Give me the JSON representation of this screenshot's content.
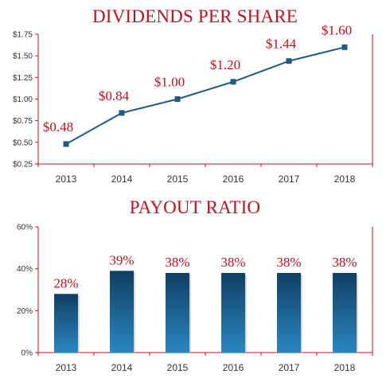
{
  "colors": {
    "accent": "#c0101f",
    "line": "#1d5a84",
    "bar_top": "#103f63",
    "bar_bottom": "#2a87c0"
  },
  "chart_data": [
    {
      "type": "line",
      "title": "DIVIDENDS PER SHARE",
      "categories": [
        "2013",
        "2014",
        "2015",
        "2016",
        "2017",
        "2018"
      ],
      "values": [
        0.48,
        0.84,
        1.0,
        1.2,
        1.44,
        1.6
      ],
      "data_labels": [
        "$0.48",
        "$0.84",
        "$1.00",
        "$1.20",
        "$1.44",
        "$1.60"
      ],
      "yticks": [
        "$0.25",
        "$0.50",
        "$0.75",
        "$1.00",
        "$1.25",
        "$1.50",
        "$1.75"
      ],
      "ylim": [
        0.25,
        1.75
      ],
      "grid": false
    },
    {
      "type": "bar",
      "title": "PAYOUT RATIO",
      "categories": [
        "2013",
        "2014",
        "2015",
        "2016",
        "2017",
        "2018"
      ],
      "values": [
        28,
        39,
        38,
        38,
        38,
        38
      ],
      "data_labels": [
        "28%",
        "39%",
        "38%",
        "38%",
        "38%",
        "38%"
      ],
      "yticks": [
        "0%",
        "20%",
        "40%",
        "60%"
      ],
      "ylim": [
        0,
        60
      ],
      "grid": false
    }
  ]
}
